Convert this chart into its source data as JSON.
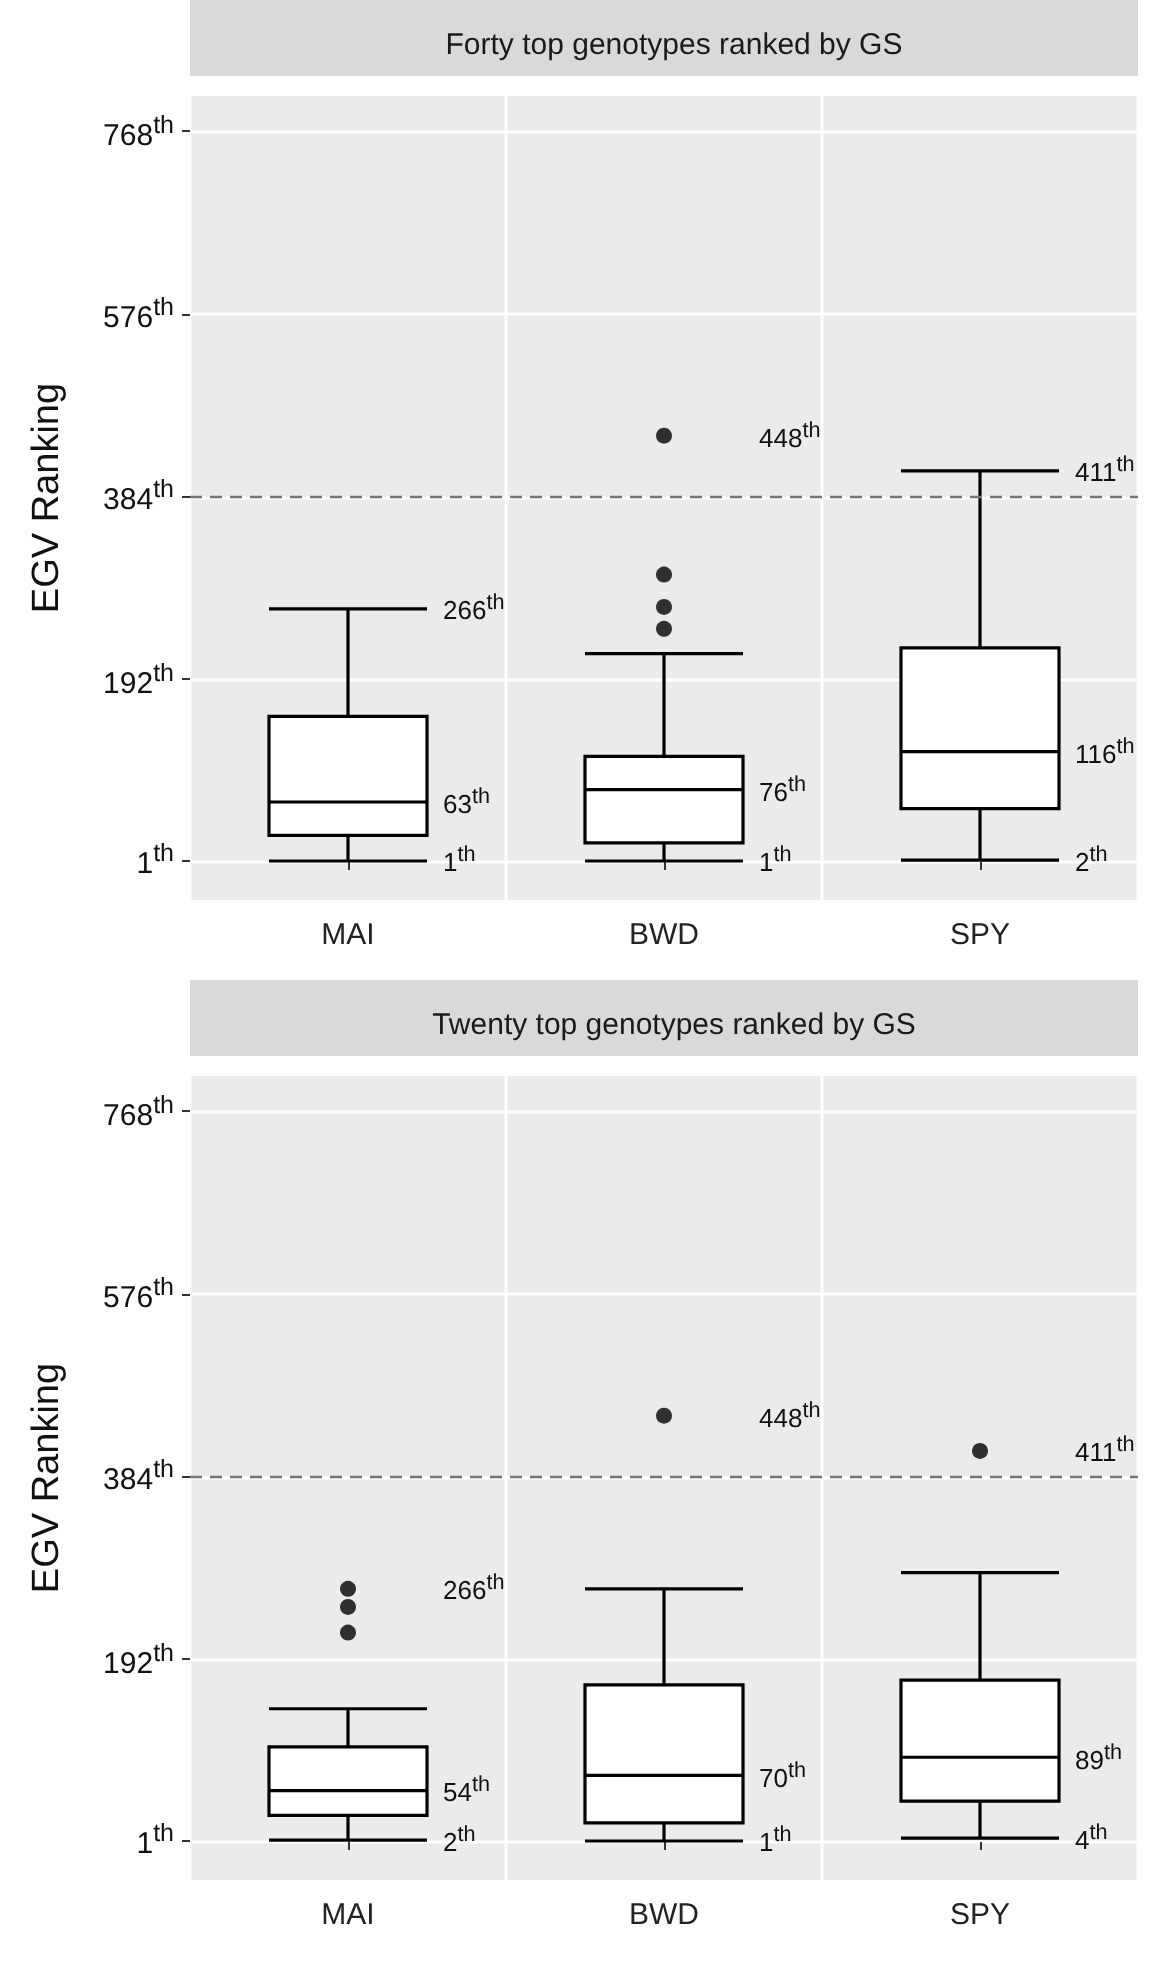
{
  "chart_data": [
    {
      "type": "box",
      "title": "Forty top genotypes ranked by GS",
      "ylabel": "EGV Ranking",
      "categories": [
        "MAI",
        "BWD",
        "SPY"
      ],
      "boxes": [
        {
          "low": 1,
          "q1": 28,
          "median": 63,
          "q3": 153,
          "high": 266
        },
        {
          "low": 1,
          "q1": 20,
          "median": 76,
          "q3": 111,
          "high": 219,
          "outliers": [
            245,
            268,
            302,
            448
          ]
        },
        {
          "low": 2,
          "q1": 56,
          "median": 116,
          "q3": 225,
          "high": 411
        }
      ],
      "ylim": [
        -40,
        805
      ],
      "yticks": [
        {
          "value": 1,
          "label": "1$^{th}$"
        },
        {
          "value": 192,
          "label": "192$^{th}$"
        },
        {
          "value": 384,
          "label": "384$^{th}$"
        },
        {
          "value": 576,
          "label": "576$^{th}$"
        },
        {
          "value": 768,
          "label": "768$^{th}$"
        }
      ],
      "ref_lines": [
        {
          "axis": "y",
          "value": 384,
          "line_style": "dashed",
          "color": "#777777"
        }
      ],
      "annotations": [
        "266$^{th}$",
        "63$^{th}$",
        "1$^{th}$",
        "448$^{th}$",
        "76$^{th}$",
        "1$^{th}$",
        "411$^{th}$",
        "116$^{th}$",
        "2$^{th}$"
      ],
      "grid": true
    },
    {
      "type": "box",
      "title": "Twenty top genotypes ranked by GS",
      "ylabel": "EGV Ranking",
      "categories": [
        "MAI",
        "BWD",
        "SPY"
      ],
      "boxes": [
        {
          "low": 2,
          "q1": 28,
          "median": 54,
          "q3": 100,
          "high": 140,
          "outliers": [
            220,
            247,
            266
          ]
        },
        {
          "low": 1,
          "q1": 20,
          "median": 70,
          "q3": 165,
          "high": 266,
          "outliers": [
            448
          ]
        },
        {
          "low": 4,
          "q1": 43,
          "median": 89,
          "q3": 170,
          "high": 283,
          "outliers": [
            411
          ]
        }
      ],
      "ylim": [
        -40,
        805
      ],
      "yticks": [
        {
          "value": 1,
          "label": "1$^{th}$"
        },
        {
          "value": 192,
          "label": "192$^{th}$"
        },
        {
          "value": 384,
          "label": "384$^{th}$"
        },
        {
          "value": 576,
          "label": "576$^{th}$"
        },
        {
          "value": 768,
          "label": "768$^{th}$"
        }
      ],
      "ref_lines": [
        {
          "axis": "y",
          "value": 384,
          "line_style": "dashed",
          "color": "#777777"
        }
      ],
      "annotations": [
        "266$^{th}$",
        "54$^{th}$",
        "2$^{th}$",
        "448$^{th}$",
        "70$^{th}$",
        "1$^{th}$",
        "411$^{th}$",
        "89$^{th}$",
        "4$^{th}$"
      ],
      "grid": true
    }
  ]
}
